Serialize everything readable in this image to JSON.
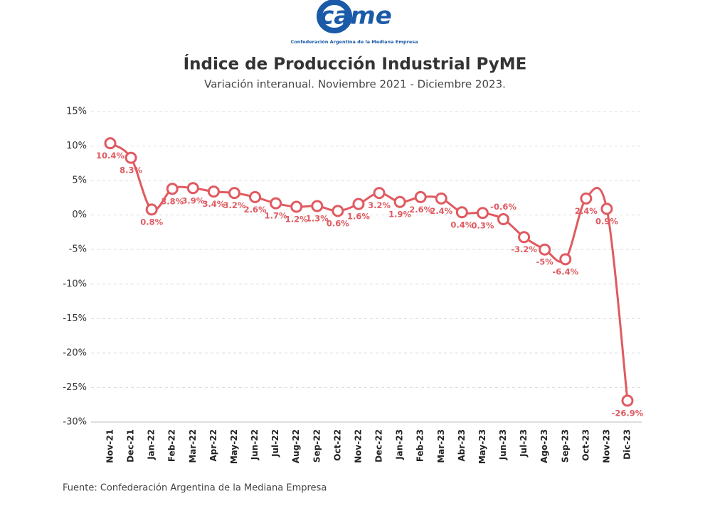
{
  "chart_data": {
    "type": "line",
    "logo_text": "came",
    "logo_caption": "Confederación Argentina de la Mediana Empresa",
    "title": "Índice de Producción Industrial PyME",
    "subtitle": "Variación interanual. Noviembre 2021 - Diciembre 2023.",
    "source": "Fuente: Confederación Argentina de la Mediana Empresa",
    "categories": [
      "Nov-21",
      "Dec-21",
      "Jan-22",
      "Feb-22",
      "Mar-22",
      "Apr-22",
      "May-22",
      "Jun-22",
      "Jul-22",
      "Aug-22",
      "Sep-22",
      "Oct-22",
      "Nov-22",
      "Dec-22",
      "Jan-23",
      "Feb-23",
      "Mar-23",
      "Abr-23",
      "May-23",
      "Jun-23",
      "Jul-23",
      "Ago-23",
      "Sep-23",
      "Oct-23",
      "Nov-23",
      "Dic-23"
    ],
    "values": [
      10.4,
      8.3,
      0.8,
      3.8,
      3.9,
      3.4,
      3.2,
      2.6,
      1.7,
      1.2,
      1.3,
      0.6,
      1.6,
      3.2,
      1.9,
      2.6,
      2.4,
      0.4,
      0.3,
      -0.6,
      -3.2,
      -5,
      -6.4,
      2.4,
      0.9,
      -26.9
    ],
    "value_labels": [
      "10.4%",
      "8.3%",
      "0.8%",
      "3.8%",
      "3.9%",
      "3.4%",
      "3.2%",
      "2.6%",
      "1.7%",
      "1.2%",
      "1.3%",
      "0.6%",
      "1.6%",
      "3.2%",
      "1.9%",
      "2.6%",
      "2.4%",
      "0.4%",
      "0.3%",
      "-0.6%",
      "-3.2%",
      "-5%",
      "-6.4%",
      "2.4%",
      "0.9%",
      "-26.9%"
    ],
    "color": "#e05a60",
    "ylim": [
      -30,
      15
    ],
    "yticks": [
      {
        "value": -30,
        "label": "-30%"
      },
      {
        "value": -25,
        "label": "-25%"
      },
      {
        "value": -20,
        "label": "-20%"
      },
      {
        "value": -15,
        "label": "-15%"
      },
      {
        "value": -10,
        "label": "-10%"
      },
      {
        "value": -5,
        "label": "-5%"
      },
      {
        "value": 0,
        "label": "0%"
      },
      {
        "value": 5,
        "label": "5%"
      },
      {
        "value": 10,
        "label": "10%"
      },
      {
        "value": 15,
        "label": "15%"
      }
    ],
    "grid": true
  }
}
